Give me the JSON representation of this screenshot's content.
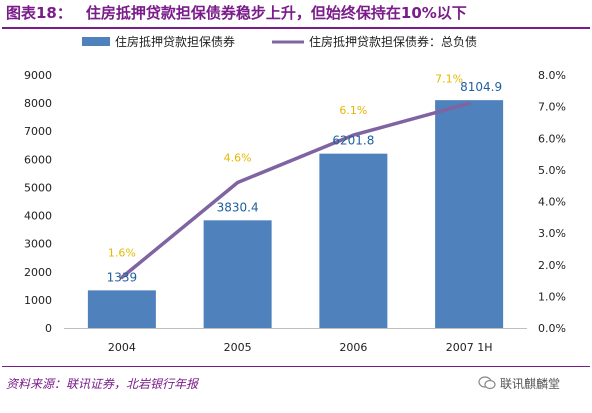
{
  "header": {
    "figure_label": "图表18：",
    "title": "住房抵押贷款担保债券稳步上升，但始终保持在10%以下"
  },
  "footer": {
    "source": "资料来源：联讯证券，北岩银行年报",
    "brand": "联讯麒麟堂"
  },
  "colors": {
    "bar": "#4f81bd",
    "line": "#8064a2",
    "bar_label": "#1f5f9e",
    "line_label": "#e6b800",
    "accent": "#7a1c8a"
  },
  "chart_data": {
    "type": "bar",
    "categories": [
      "2004",
      "2005",
      "2006",
      "2007 1H"
    ],
    "series": [
      {
        "name": "住房抵押贷款担保债券",
        "type": "bar",
        "axis": "left",
        "values": [
          1339,
          3830.4,
          6201.8,
          8104.9
        ],
        "labels": [
          "1339",
          "3830.4",
          "6201.8",
          "8104.9"
        ]
      },
      {
        "name": "住房抵押贷款担保债券：总负债",
        "type": "line",
        "axis": "right",
        "values": [
          1.6,
          4.6,
          6.1,
          7.1
        ],
        "labels": [
          "1.6%",
          "4.6%",
          "6.1%",
          "7.1%"
        ]
      }
    ],
    "y_left": {
      "lim": [
        0,
        9000
      ],
      "ticks": [
        "0",
        "1000",
        "2000",
        "3000",
        "4000",
        "5000",
        "6000",
        "7000",
        "8000",
        "9000"
      ]
    },
    "y_right": {
      "lim": [
        0,
        8
      ],
      "ticks": [
        "0.0%",
        "1.0%",
        "2.0%",
        "3.0%",
        "4.0%",
        "5.0%",
        "6.0%",
        "7.0%",
        "8.0%"
      ]
    },
    "legend_position": "top",
    "grid": false
  }
}
